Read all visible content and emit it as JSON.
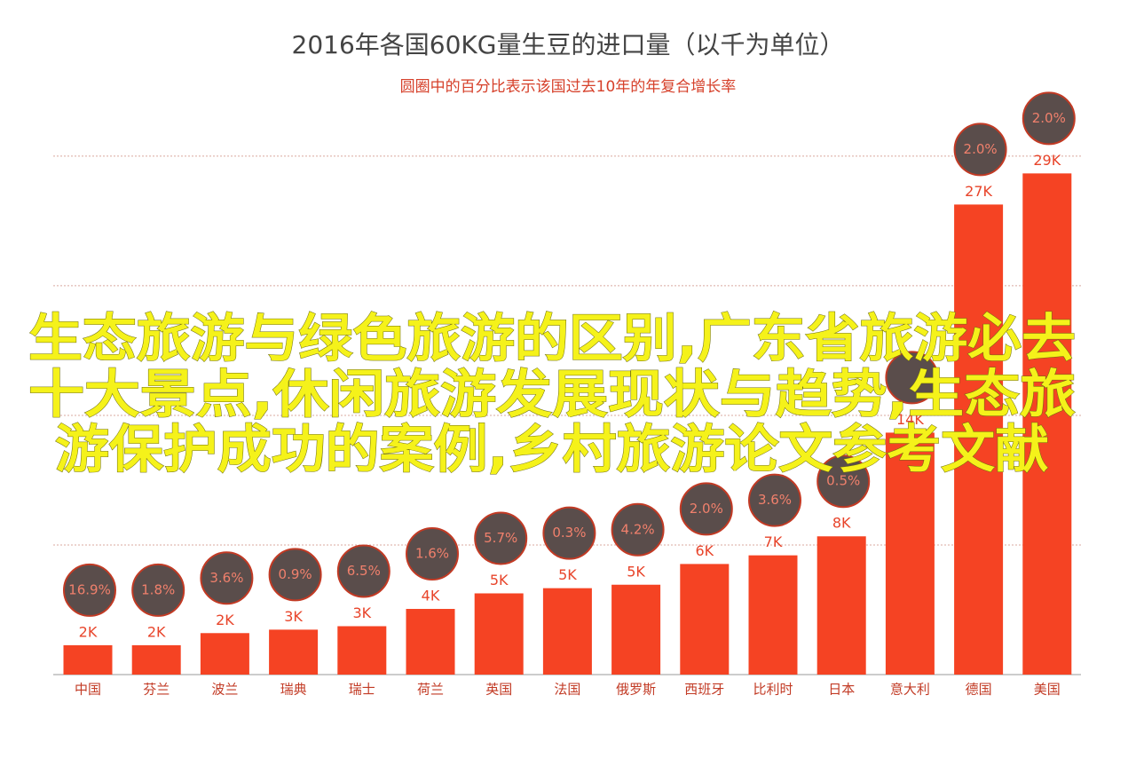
{
  "chart_data": {
    "type": "bar",
    "title": "2016年各国60KG量生豆的进口量（以千为单位）",
    "subtitle": "圆圈中的百分比表示该国过去10年的年复合增长率",
    "categories": [
      "中国",
      "芬兰",
      "波兰",
      "瑞典",
      "瑞士",
      "荷兰",
      "英国",
      "法国",
      "俄罗斯",
      "西班牙",
      "比利时",
      "日本",
      "意大利",
      "德国",
      "美国"
    ],
    "values": [
      1.7,
      1.7,
      2.4,
      2.6,
      2.8,
      3.8,
      4.7,
      5.0,
      5.2,
      6.4,
      6.9,
      8.0,
      14.0,
      27.2,
      29.0
    ],
    "value_labels": [
      "2K",
      "2K",
      "2K",
      "3K",
      "3K",
      "4K",
      "5K",
      "5K",
      "5K",
      "6K",
      "7K",
      "8K",
      "14K",
      "27K",
      "29K"
    ],
    "growth_labels": [
      "16.9%",
      "1.8%",
      "3.6%",
      "0.9%",
      "6.5%",
      "1.6%",
      "5.7%",
      "0.3%",
      "4.2%",
      "2.0%",
      "3.6%",
      "0.5%",
      null,
      "2.0%",
      "2.0%"
    ],
    "color": "#f54323",
    "ylim": [
      0,
      31
    ],
    "yticks": [
      0,
      7.5,
      15,
      22.5,
      30
    ],
    "grid": true,
    "tick_labels": false,
    "overlay_text": [
      "生态旅游与绿色旅游的区别,广东省旅游必去",
      "十大景点,休闲旅游发展现状与趋势,生态旅",
      "游保护成功的案例,乡村旅游论文参考文献"
    ]
  }
}
